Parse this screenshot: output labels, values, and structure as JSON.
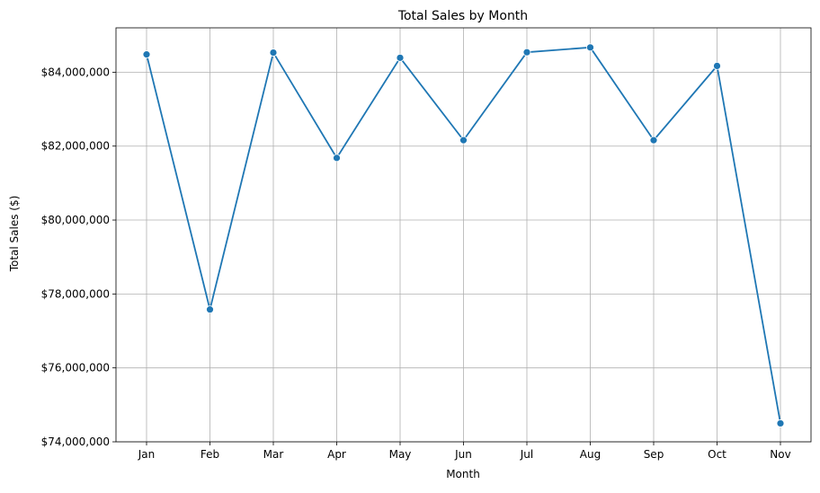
{
  "chart_data": {
    "type": "line",
    "title": "Total Sales by Month",
    "xlabel": "Month",
    "ylabel": "Total Sales ($)",
    "categories": [
      "Jan",
      "Feb",
      "Mar",
      "Apr",
      "May",
      "Jun",
      "Jul",
      "Aug",
      "Sep",
      "Oct",
      "Nov"
    ],
    "series": [
      {
        "values": [
          84480000,
          77580000,
          84530000,
          81680000,
          84390000,
          82160000,
          84540000,
          84670000,
          82160000,
          84170000,
          74500000
        ],
        "color": "#1f77b4",
        "marker": "circle"
      }
    ],
    "ylim": [
      74000000,
      85200000
    ],
    "yticks": [
      74000000,
      76000000,
      78000000,
      80000000,
      82000000,
      84000000
    ],
    "ytick_labels": [
      "$74,000,000",
      "$76,000,000",
      "$78,000,000",
      "$80,000,000",
      "$82,000,000",
      "$84,000,000"
    ],
    "grid": true,
    "grid_color": "#b0b0b0"
  }
}
